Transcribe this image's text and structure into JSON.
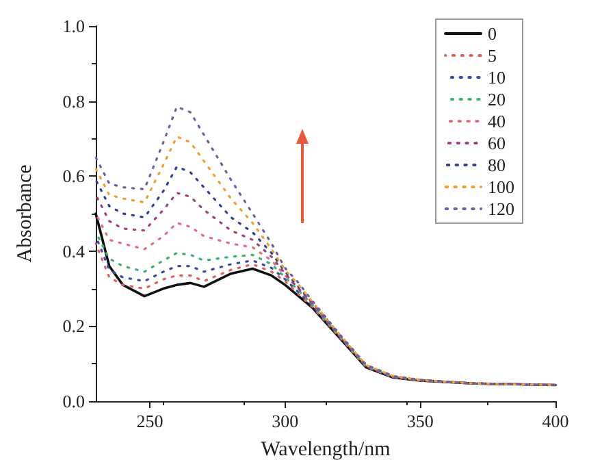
{
  "chart_data": {
    "type": "line",
    "xlabel": "Wavelength/nm",
    "ylabel": "Absorbance",
    "x": [
      230,
      235,
      240,
      248,
      255,
      260,
      265,
      270,
      280,
      288,
      295,
      300,
      305,
      310,
      320,
      330,
      340,
      350,
      370,
      400
    ],
    "xlim": [
      230,
      400
    ],
    "xticks": [
      250,
      300,
      350,
      400
    ],
    "ylim": [
      0,
      1.0
    ],
    "yticks": [
      {
        "value": 0,
        "label": "0.0"
      },
      0.2,
      0.4,
      0.6,
      0.8,
      {
        "value": 1.0,
        "label": "1.0"
      }
    ],
    "grid": false,
    "legend": "top right",
    "marker": "none",
    "series": [
      {
        "name": "0",
        "color": "#111111",
        "line_style": "solid",
        "values": [
          0.5,
          0.36,
          0.31,
          0.28,
          0.3,
          0.31,
          0.315,
          0.305,
          0.34,
          0.353,
          0.335,
          0.31,
          0.28,
          0.25,
          0.17,
          0.09,
          0.063,
          0.055,
          0.047,
          0.043
        ]
      },
      {
        "name": "5",
        "color": "#e06060",
        "line_style": "dotted",
        "values": [
          0.42,
          0.33,
          0.31,
          0.3,
          0.325,
          0.335,
          0.335,
          0.32,
          0.35,
          0.365,
          0.345,
          0.32,
          0.285,
          0.252,
          0.172,
          0.091,
          0.064,
          0.055,
          0.047,
          0.043
        ]
      },
      {
        "name": "10",
        "color": "#3a4aa0",
        "line_style": "dotted",
        "values": [
          0.44,
          0.35,
          0.33,
          0.32,
          0.345,
          0.36,
          0.36,
          0.345,
          0.365,
          0.375,
          0.355,
          0.325,
          0.29,
          0.255,
          0.174,
          0.092,
          0.064,
          0.055,
          0.047,
          0.043
        ]
      },
      {
        "name": "20",
        "color": "#40b070",
        "line_style": "dotted",
        "values": [
          0.45,
          0.38,
          0.36,
          0.345,
          0.375,
          0.395,
          0.39,
          0.375,
          0.385,
          0.39,
          0.365,
          0.33,
          0.295,
          0.258,
          0.175,
          0.093,
          0.065,
          0.056,
          0.047,
          0.043
        ]
      },
      {
        "name": "40",
        "color": "#e07080",
        "line_style": "dotted",
        "values": [
          0.5,
          0.43,
          0.42,
          0.405,
          0.44,
          0.475,
          0.465,
          0.44,
          0.42,
          0.41,
          0.375,
          0.335,
          0.3,
          0.26,
          0.176,
          0.094,
          0.065,
          0.056,
          0.047,
          0.043
        ]
      },
      {
        "name": "60",
        "color": "#a04080",
        "line_style": "dotted",
        "values": [
          0.55,
          0.48,
          0.46,
          0.455,
          0.51,
          0.555,
          0.545,
          0.51,
          0.455,
          0.43,
          0.385,
          0.34,
          0.3,
          0.262,
          0.177,
          0.095,
          0.066,
          0.056,
          0.047,
          0.043
        ]
      },
      {
        "name": "80",
        "color": "#303f8f",
        "line_style": "dotted",
        "values": [
          0.59,
          0.52,
          0.5,
          0.49,
          0.56,
          0.625,
          0.61,
          0.57,
          0.49,
          0.45,
          0.395,
          0.345,
          0.305,
          0.264,
          0.178,
          0.095,
          0.066,
          0.056,
          0.047,
          0.043
        ]
      },
      {
        "name": "100",
        "color": "#f0a030",
        "line_style": "dotted",
        "values": [
          0.62,
          0.55,
          0.54,
          0.53,
          0.63,
          0.705,
          0.69,
          0.64,
          0.54,
          0.475,
          0.405,
          0.35,
          0.31,
          0.266,
          0.179,
          0.096,
          0.067,
          0.056,
          0.047,
          0.043
        ]
      },
      {
        "name": "120",
        "color": "#7060a0",
        "line_style": "dotted",
        "values": [
          0.65,
          0.58,
          0.57,
          0.565,
          0.69,
          0.785,
          0.77,
          0.71,
          0.59,
          0.5,
          0.42,
          0.355,
          0.315,
          0.268,
          0.18,
          0.097,
          0.067,
          0.057,
          0.047,
          0.043
        ]
      }
    ]
  }
}
